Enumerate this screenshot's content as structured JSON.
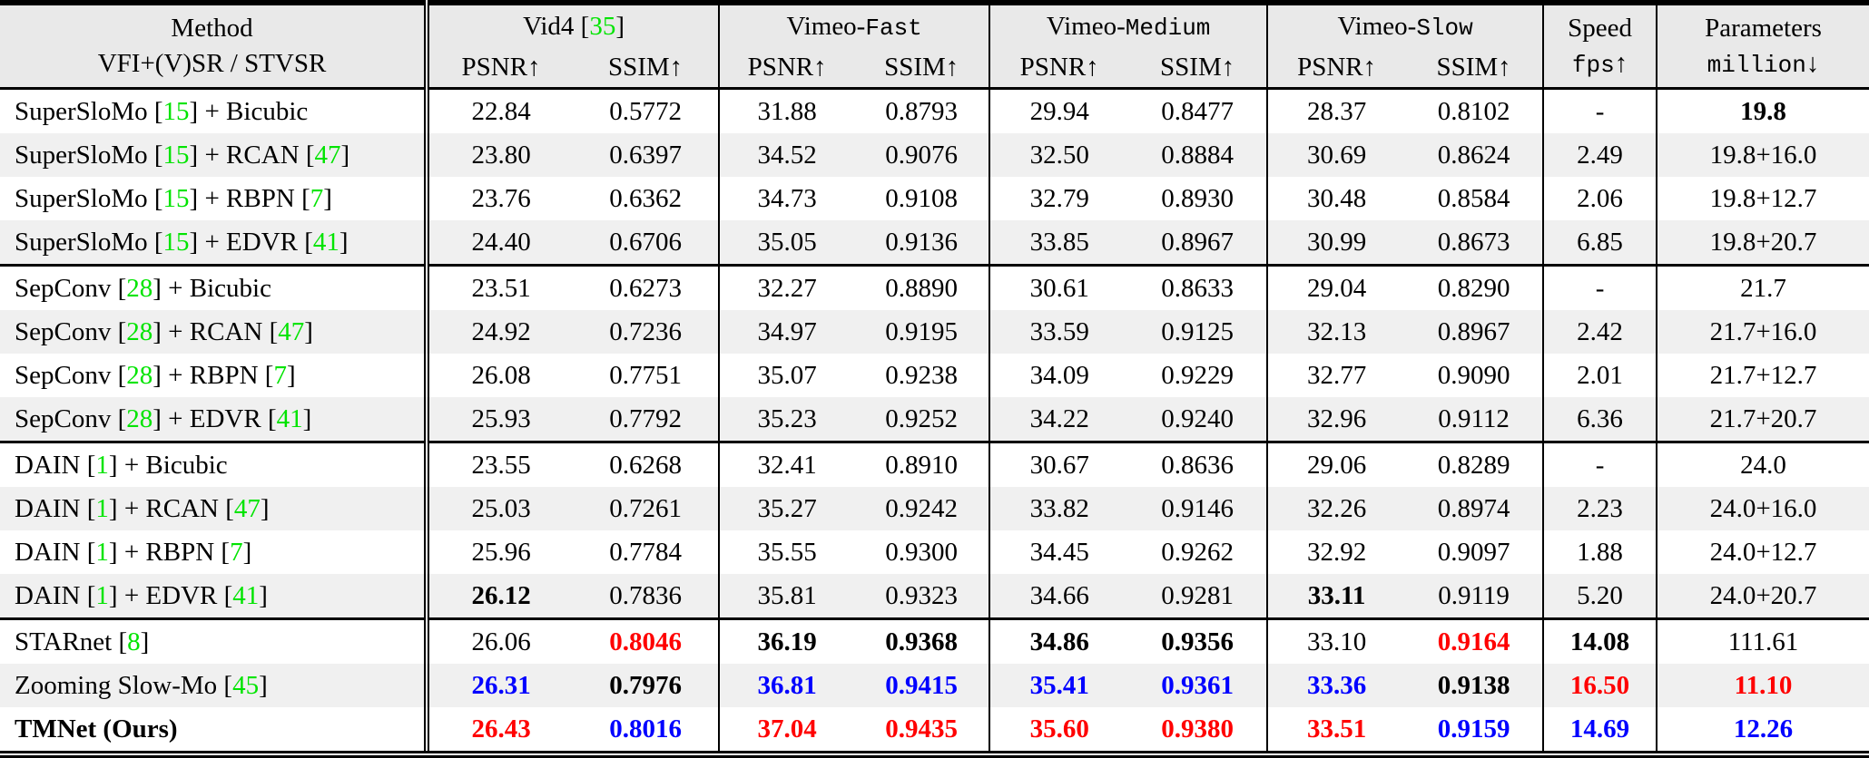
{
  "colors": {
    "green": "#00e400",
    "red": "#ff0000",
    "blue": "#0000ff",
    "header_bg": "#e9e9e9",
    "alt_row_bg": "#f0f0f0"
  },
  "header": {
    "method_line1": "Method",
    "method_line2": "VFI+(V)SR / STVSR",
    "groups": [
      {
        "segs": [
          {
            "t": "Vid4 ["
          },
          {
            "t": "35",
            "g": true
          },
          {
            "t": "]"
          }
        ]
      },
      {
        "segs": [
          {
            "t": "Vimeo-"
          },
          {
            "t": "Fast",
            "m": true
          }
        ]
      },
      {
        "segs": [
          {
            "t": "Vimeo-"
          },
          {
            "t": "Medium",
            "m": true
          }
        ]
      },
      {
        "segs": [
          {
            "t": "Vimeo-"
          },
          {
            "t": "Slow",
            "m": true
          }
        ]
      }
    ],
    "sub": {
      "psnr": "PSNR↑",
      "ssim": "SSIM↑"
    },
    "speed": {
      "line1": "Speed",
      "line2": "fps",
      "arrow": "↑"
    },
    "params": {
      "line1": "Parameters",
      "line2": "million",
      "arrow": "↓"
    }
  },
  "table": {
    "rows": [
      {
        "method": [
          {
            "t": "SuperSloMo ["
          },
          {
            "t": "15",
            "g": true
          },
          {
            "t": "] + Bicubic"
          }
        ],
        "cells": [
          {
            "v": "22.84"
          },
          {
            "v": "0.5772"
          },
          {
            "v": "31.88"
          },
          {
            "v": "0.8793"
          },
          {
            "v": "29.94"
          },
          {
            "v": "0.8477"
          },
          {
            "v": "28.37"
          },
          {
            "v": "0.8102"
          },
          {
            "v": "-"
          },
          {
            "v": "19.8",
            "b": true
          }
        ]
      },
      {
        "method": [
          {
            "t": "SuperSloMo ["
          },
          {
            "t": "15",
            "g": true
          },
          {
            "t": "] + RCAN ["
          },
          {
            "t": "47",
            "g": true
          },
          {
            "t": "]"
          }
        ],
        "cells": [
          {
            "v": "23.80"
          },
          {
            "v": "0.6397"
          },
          {
            "v": "34.52"
          },
          {
            "v": "0.9076"
          },
          {
            "v": "32.50"
          },
          {
            "v": "0.8884"
          },
          {
            "v": "30.69"
          },
          {
            "v": "0.8624"
          },
          {
            "v": "2.49"
          },
          {
            "v": "19.8+16.0"
          }
        ]
      },
      {
        "method": [
          {
            "t": "SuperSloMo ["
          },
          {
            "t": "15",
            "g": true
          },
          {
            "t": "] + RBPN ["
          },
          {
            "t": "7",
            "g": true
          },
          {
            "t": "]"
          }
        ],
        "cells": [
          {
            "v": "23.76"
          },
          {
            "v": "0.6362"
          },
          {
            "v": "34.73"
          },
          {
            "v": "0.9108"
          },
          {
            "v": "32.79"
          },
          {
            "v": "0.8930"
          },
          {
            "v": "30.48"
          },
          {
            "v": "0.8584"
          },
          {
            "v": "2.06"
          },
          {
            "v": "19.8+12.7"
          }
        ]
      },
      {
        "method": [
          {
            "t": "SuperSloMo ["
          },
          {
            "t": "15",
            "g": true
          },
          {
            "t": "] + EDVR ["
          },
          {
            "t": "41",
            "g": true
          },
          {
            "t": "]"
          }
        ],
        "cells": [
          {
            "v": "24.40"
          },
          {
            "v": "0.6706"
          },
          {
            "v": "35.05"
          },
          {
            "v": "0.9136"
          },
          {
            "v": "33.85"
          },
          {
            "v": "0.8967"
          },
          {
            "v": "30.99"
          },
          {
            "v": "0.8673"
          },
          {
            "v": "6.85"
          },
          {
            "v": "19.8+20.7"
          }
        ]
      },
      {
        "group_start": true,
        "method": [
          {
            "t": "SepConv ["
          },
          {
            "t": "28",
            "g": true
          },
          {
            "t": "] + Bicubic"
          }
        ],
        "cells": [
          {
            "v": "23.51"
          },
          {
            "v": "0.6273"
          },
          {
            "v": "32.27"
          },
          {
            "v": "0.8890"
          },
          {
            "v": "30.61"
          },
          {
            "v": "0.8633"
          },
          {
            "v": "29.04"
          },
          {
            "v": "0.8290"
          },
          {
            "v": "-"
          },
          {
            "v": "21.7"
          }
        ]
      },
      {
        "method": [
          {
            "t": "SepConv ["
          },
          {
            "t": "28",
            "g": true
          },
          {
            "t": "] + RCAN ["
          },
          {
            "t": "47",
            "g": true
          },
          {
            "t": "]"
          }
        ],
        "cells": [
          {
            "v": "24.92"
          },
          {
            "v": "0.7236"
          },
          {
            "v": "34.97"
          },
          {
            "v": "0.9195"
          },
          {
            "v": "33.59"
          },
          {
            "v": "0.9125"
          },
          {
            "v": "32.13"
          },
          {
            "v": "0.8967"
          },
          {
            "v": "2.42"
          },
          {
            "v": "21.7+16.0"
          }
        ]
      },
      {
        "method": [
          {
            "t": "SepConv ["
          },
          {
            "t": "28",
            "g": true
          },
          {
            "t": "] + RBPN ["
          },
          {
            "t": "7",
            "g": true
          },
          {
            "t": "]"
          }
        ],
        "cells": [
          {
            "v": "26.08"
          },
          {
            "v": "0.7751"
          },
          {
            "v": "35.07"
          },
          {
            "v": "0.9238"
          },
          {
            "v": "34.09"
          },
          {
            "v": "0.9229"
          },
          {
            "v": "32.77"
          },
          {
            "v": "0.9090"
          },
          {
            "v": "2.01"
          },
          {
            "v": "21.7+12.7"
          }
        ]
      },
      {
        "method": [
          {
            "t": "SepConv ["
          },
          {
            "t": "28",
            "g": true
          },
          {
            "t": "] + EDVR ["
          },
          {
            "t": "41",
            "g": true
          },
          {
            "t": "]"
          }
        ],
        "cells": [
          {
            "v": "25.93"
          },
          {
            "v": "0.7792"
          },
          {
            "v": "35.23"
          },
          {
            "v": "0.9252"
          },
          {
            "v": "34.22"
          },
          {
            "v": "0.9240"
          },
          {
            "v": "32.96"
          },
          {
            "v": "0.9112"
          },
          {
            "v": "6.36"
          },
          {
            "v": "21.7+20.7"
          }
        ]
      },
      {
        "group_start": true,
        "method": [
          {
            "t": "DAIN ["
          },
          {
            "t": "1",
            "g": true
          },
          {
            "t": "] + Bicubic"
          }
        ],
        "cells": [
          {
            "v": "23.55"
          },
          {
            "v": "0.6268"
          },
          {
            "v": "32.41"
          },
          {
            "v": "0.8910"
          },
          {
            "v": "30.67"
          },
          {
            "v": "0.8636"
          },
          {
            "v": "29.06"
          },
          {
            "v": "0.8289"
          },
          {
            "v": "-"
          },
          {
            "v": "24.0"
          }
        ]
      },
      {
        "method": [
          {
            "t": "DAIN ["
          },
          {
            "t": "1",
            "g": true
          },
          {
            "t": "] + RCAN ["
          },
          {
            "t": "47",
            "g": true
          },
          {
            "t": "]"
          }
        ],
        "cells": [
          {
            "v": "25.03"
          },
          {
            "v": "0.7261"
          },
          {
            "v": "35.27"
          },
          {
            "v": "0.9242"
          },
          {
            "v": "33.82"
          },
          {
            "v": "0.9146"
          },
          {
            "v": "32.26"
          },
          {
            "v": "0.8974"
          },
          {
            "v": "2.23"
          },
          {
            "v": "24.0+16.0"
          }
        ]
      },
      {
        "method": [
          {
            "t": "DAIN ["
          },
          {
            "t": "1",
            "g": true
          },
          {
            "t": "] + RBPN ["
          },
          {
            "t": "7",
            "g": true
          },
          {
            "t": "]"
          }
        ],
        "cells": [
          {
            "v": "25.96"
          },
          {
            "v": "0.7784"
          },
          {
            "v": "35.55"
          },
          {
            "v": "0.9300"
          },
          {
            "v": "34.45"
          },
          {
            "v": "0.9262"
          },
          {
            "v": "32.92"
          },
          {
            "v": "0.9097"
          },
          {
            "v": "1.88"
          },
          {
            "v": "24.0+12.7"
          }
        ]
      },
      {
        "method": [
          {
            "t": "DAIN ["
          },
          {
            "t": "1",
            "g": true
          },
          {
            "t": "] + EDVR ["
          },
          {
            "t": "41",
            "g": true
          },
          {
            "t": "]"
          }
        ],
        "cells": [
          {
            "v": "26.12",
            "b": true
          },
          {
            "v": "0.7836"
          },
          {
            "v": "35.81"
          },
          {
            "v": "0.9323"
          },
          {
            "v": "34.66"
          },
          {
            "v": "0.9281"
          },
          {
            "v": "33.11",
            "b": true
          },
          {
            "v": "0.9119"
          },
          {
            "v": "5.20"
          },
          {
            "v": "24.0+20.7"
          }
        ]
      },
      {
        "group_start": true,
        "method": [
          {
            "t": "STARnet ["
          },
          {
            "t": "8",
            "g": true
          },
          {
            "t": "]"
          }
        ],
        "cells": [
          {
            "v": "26.06"
          },
          {
            "v": "0.8046",
            "b": true,
            "c": "red"
          },
          {
            "v": "36.19",
            "b": true
          },
          {
            "v": "0.9368",
            "b": true
          },
          {
            "v": "34.86",
            "b": true
          },
          {
            "v": "0.9356",
            "b": true
          },
          {
            "v": "33.10"
          },
          {
            "v": "0.9164",
            "b": true,
            "c": "red"
          },
          {
            "v": "14.08",
            "b": true
          },
          {
            "v": "111.61"
          }
        ]
      },
      {
        "method": [
          {
            "t": "Zooming Slow-Mo ["
          },
          {
            "t": "45",
            "g": true
          },
          {
            "t": "]"
          }
        ],
        "cells": [
          {
            "v": "26.31",
            "b": true,
            "c": "blue"
          },
          {
            "v": "0.7976",
            "b": true
          },
          {
            "v": "36.81",
            "b": true,
            "c": "blue"
          },
          {
            "v": "0.9415",
            "b": true,
            "c": "blue"
          },
          {
            "v": "35.41",
            "b": true,
            "c": "blue"
          },
          {
            "v": "0.9361",
            "b": true,
            "c": "blue"
          },
          {
            "v": "33.36",
            "b": true,
            "c": "blue"
          },
          {
            "v": "0.9138",
            "b": true
          },
          {
            "v": "16.50",
            "b": true,
            "c": "red"
          },
          {
            "v": "11.10",
            "b": true,
            "c": "red"
          }
        ]
      },
      {
        "method": [
          {
            "t": "TMNet (Ours)"
          }
        ],
        "bold": true,
        "cells": [
          {
            "v": "26.43",
            "b": true,
            "c": "red"
          },
          {
            "v": "0.8016",
            "b": true,
            "c": "blue"
          },
          {
            "v": "37.04",
            "b": true,
            "c": "red"
          },
          {
            "v": "0.9435",
            "b": true,
            "c": "red"
          },
          {
            "v": "35.60",
            "b": true,
            "c": "red"
          },
          {
            "v": "0.9380",
            "b": true,
            "c": "red"
          },
          {
            "v": "33.51",
            "b": true,
            "c": "red"
          },
          {
            "v": "0.9159",
            "b": true,
            "c": "blue"
          },
          {
            "v": "14.69",
            "b": true,
            "c": "blue"
          },
          {
            "v": "12.26",
            "b": true,
            "c": "blue"
          }
        ]
      }
    ]
  }
}
